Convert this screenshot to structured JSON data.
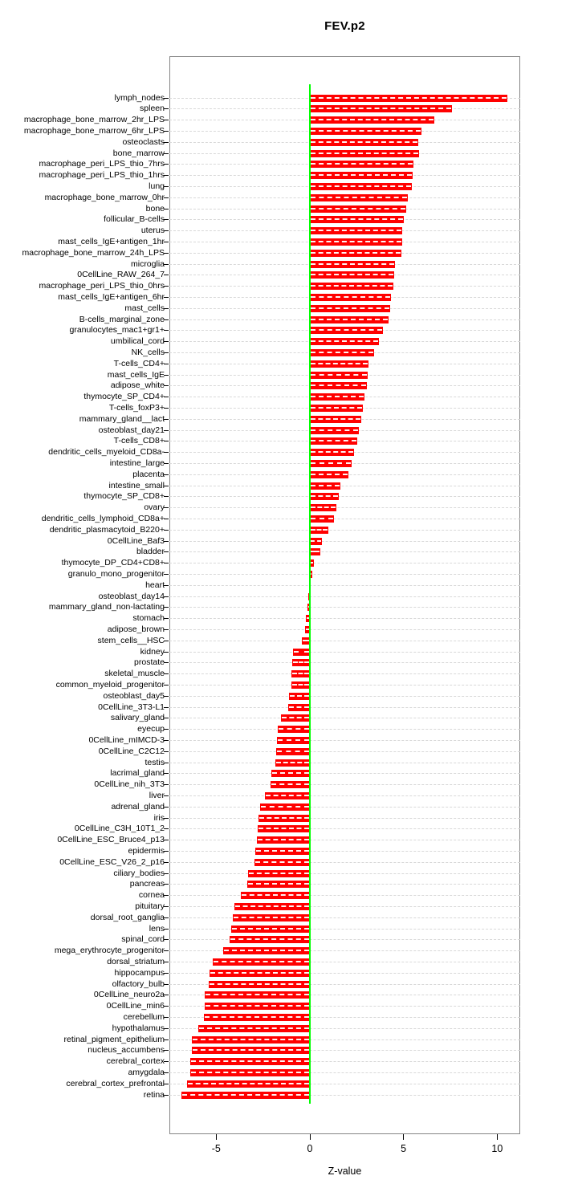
{
  "title": "FEV.p2",
  "chart_data": {
    "type": "bar",
    "orientation": "horizontal",
    "title": "FEV.p2",
    "xlabel": "Z-value",
    "xticks": [
      -5,
      0,
      5,
      10
    ],
    "xlim": [
      -7.5,
      11.2
    ],
    "grid": "dashed horizontal per category",
    "legend": "none",
    "bar_color": "#ff0000",
    "zero_line_color": "#00ff00",
    "categories": [
      "lymph_nodes",
      "spleen",
      "macrophage_bone_marrow_2hr_LPS",
      "macrophage_bone_marrow_6hr_LPS",
      "osteoclasts",
      "bone_marrow",
      "macrophage_peri_LPS_thio_7hrs",
      "macrophage_peri_LPS_thio_1hrs",
      "lung",
      "macrophage_bone_marrow_0hr",
      "bone",
      "follicular_B-cells",
      "uterus",
      "mast_cells_IgE+antigen_1hr",
      "macrophage_bone_marrow_24h_LPS",
      "microglia",
      "0CellLine_RAW_264_7",
      "macrophage_peri_LPS_thio_0hrs",
      "mast_cells_IgE+antigen_6hr",
      "mast_cells",
      "B-cells_marginal_zone",
      "granulocytes_mac1+gr1+",
      "umbilical_cord",
      "NK_cells",
      "T-cells_CD4+",
      "mast_cells_IgE",
      "adipose_white",
      "thymocyte_SP_CD4+",
      "T-cells_foxP3+",
      "mammary_gland__lact",
      "osteoblast_day21",
      "T-cells_CD8+",
      "dendritic_cells_myeloid_CD8a-",
      "intestine_large",
      "placenta",
      "intestine_small",
      "thymocyte_SP_CD8+",
      "ovary",
      "dendritic_cells_lymphoid_CD8a+",
      "dendritic_plasmacytoid_B220+",
      "0CellLine_Baf3",
      "bladder",
      "thymocyte_DP_CD4+CD8+",
      "granulo_mono_progenitor",
      "heart",
      "osteoblast_day14",
      "mammary_gland_non-lactating",
      "stomach",
      "adipose_brown",
      "stem_cells__HSC",
      "kidney",
      "prostate",
      "skeletal_muscle",
      "common_myeloid_progenitor",
      "osteoblast_day5",
      "0CellLine_3T3-L1",
      "salivary_gland",
      "eyecup",
      "0CellLine_mIMCD-3",
      "0CellLine_C2C12",
      "testis",
      "lacrimal_gland",
      "0CellLine_nih_3T3",
      "liver",
      "adrenal_gland",
      "iris",
      "0CellLine_C3H_10T1_2",
      "0CellLine_ESC_Bruce4_p13",
      "epidermis",
      "0CellLine_ESC_V26_2_p16",
      "ciliary_bodies",
      "pancreas",
      "cornea",
      "pituitary",
      "dorsal_root_ganglia",
      "lens",
      "spinal_cord",
      "mega_erythrocyte_progenitor",
      "dorsal_striatum",
      "hippocampus",
      "olfactory_bulb",
      "0CellLine_neuro2a",
      "0CellLine_min6",
      "cerebellum",
      "hypothalamus",
      "retinal_pigment_epithelium",
      "nucleus_accumbens",
      "cerebral_cortex",
      "amygdala",
      "cerebral_cortex_prefrontal",
      "retina"
    ],
    "values": [
      10.55,
      7.6,
      6.65,
      5.95,
      5.8,
      5.85,
      5.55,
      5.5,
      5.45,
      5.25,
      5.15,
      5.0,
      4.95,
      4.95,
      4.9,
      4.55,
      4.5,
      4.45,
      4.35,
      4.3,
      4.2,
      3.9,
      3.7,
      3.45,
      3.15,
      3.1,
      3.05,
      2.9,
      2.85,
      2.75,
      2.6,
      2.55,
      2.35,
      2.25,
      2.05,
      1.65,
      1.55,
      1.4,
      1.3,
      1.0,
      0.65,
      0.55,
      0.2,
      0.15,
      0.03,
      -0.1,
      -0.15,
      -0.2,
      -0.25,
      -0.45,
      -0.9,
      -0.95,
      -1.0,
      -1.0,
      -1.1,
      -1.15,
      -1.55,
      -1.7,
      -1.75,
      -1.8,
      -1.85,
      -2.05,
      -2.1,
      -2.4,
      -2.65,
      -2.75,
      -2.8,
      -2.85,
      -2.9,
      -2.95,
      -3.3,
      -3.35,
      -3.7,
      -4.05,
      -4.1,
      -4.2,
      -4.3,
      -4.65,
      -5.2,
      -5.35,
      -5.4,
      -5.6,
      -5.6,
      -5.65,
      -5.95,
      -6.3,
      -6.3,
      -6.4,
      -6.4,
      -6.55,
      -6.85
    ]
  }
}
